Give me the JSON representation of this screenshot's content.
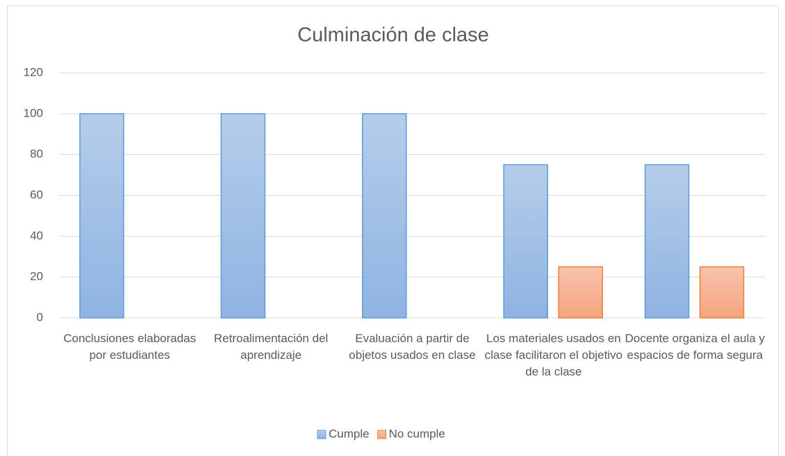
{
  "chart_data": {
    "type": "bar",
    "title": "Culminación de clase",
    "categories": [
      "Conclusiones elaboradas por estudiantes",
      "Retroalimentación del aprendizaje",
      "Evaluación a partir de objetos usados en clase",
      "Los materiales usados en clase facilitaron el objetivo de la clase",
      "Docente organiza el aula y espacios de forma segura"
    ],
    "series": [
      {
        "name": "Cumple",
        "color": "#5b9bd5",
        "values": [
          100,
          100,
          100,
          75,
          75
        ]
      },
      {
        "name": "No cumple",
        "color": "#ed7d31",
        "values": [
          0,
          0,
          0,
          25,
          25
        ]
      }
    ],
    "ylim": [
      0,
      120
    ],
    "yticks": [
      0,
      20,
      40,
      60,
      80,
      100,
      120
    ],
    "grid": true,
    "legend": "bottom"
  }
}
